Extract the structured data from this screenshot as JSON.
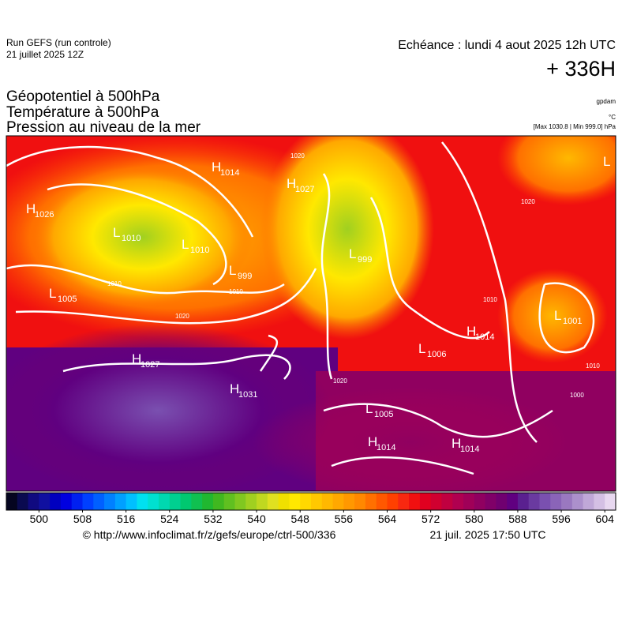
{
  "header": {
    "run": "Run GEFS (run controle)",
    "run_date": "21 juillet 2025 12Z",
    "echeance": "Echéance : lundi 4 aout 2025 12h UTC",
    "lead": "+ 336H",
    "fields": [
      "Géopotentiel à 500hPa",
      "Température à 500hPa",
      "Pression au niveau de la mer"
    ],
    "units": [
      "gpdam",
      "°C",
      "[Max 1030.8 | Min 999.0] hPa"
    ]
  },
  "systems": [
    {
      "type": "H",
      "value": 1026
    },
    {
      "type": "L",
      "value": 1010
    },
    {
      "type": "L",
      "value": 1010
    },
    {
      "type": "H",
      "value": 1014
    },
    {
      "type": "H",
      "value": 1027
    },
    {
      "type": "L",
      "value": 999
    },
    {
      "type": "L",
      "value": 999
    },
    {
      "type": "L",
      "value": 1005
    },
    {
      "type": "H",
      "value": 1027
    },
    {
      "type": "H",
      "value": 1031
    },
    {
      "type": "L",
      "value": 1005
    },
    {
      "type": "H",
      "value": 1014
    },
    {
      "type": "H",
      "value": 1014
    },
    {
      "type": "L",
      "value": 1006
    },
    {
      "type": "H",
      "value": 1014
    },
    {
      "type": "L",
      "value": 1001
    },
    {
      "type": "L",
      "value": null
    }
  ],
  "isobar_labels": [
    1010,
    1020,
    1010,
    1000,
    1020,
    1010,
    1010,
    1020,
    1020
  ],
  "colorbar": {
    "range": [
      494,
      606
    ],
    "ticks": [
      500,
      508,
      516,
      524,
      532,
      540,
      548,
      556,
      564,
      572,
      580,
      588,
      596,
      604
    ],
    "colors": [
      "#050520",
      "#0a0a50",
      "#100a80",
      "#1010a0",
      "#0000c0",
      "#0000e0",
      "#0020f0",
      "#0040ff",
      "#0060ff",
      "#0080ff",
      "#00a0ff",
      "#00c0ff",
      "#00e0f0",
      "#00e0d0",
      "#00d8b0",
      "#00d090",
      "#00c870",
      "#10c050",
      "#20b830",
      "#40b820",
      "#60c020",
      "#80c820",
      "#a0d020",
      "#c0d820",
      "#e0e020",
      "#f0e000",
      "#ffe800",
      "#ffd800",
      "#ffc800",
      "#ffb800",
      "#ffa800",
      "#ff9800",
      "#ff8800",
      "#ff7000",
      "#ff5800",
      "#ff4000",
      "#f82810",
      "#f01010",
      "#e00020",
      "#d00030",
      "#c00040",
      "#b00050",
      "#a00058",
      "#900060",
      "#800068",
      "#700070",
      "#600080",
      "#5a2090",
      "#6a3aa0",
      "#7a50b0",
      "#8a64b8",
      "#9a78c0",
      "#ac90cc",
      "#c0a8d8",
      "#d4c0e4",
      "#e8d8f0"
    ]
  },
  "footer": {
    "url": "© http://www.infoclimat.fr/z/gefs/europe/ctrl-500/336",
    "timestamp": "21 juil. 2025 17:50 UTC"
  }
}
